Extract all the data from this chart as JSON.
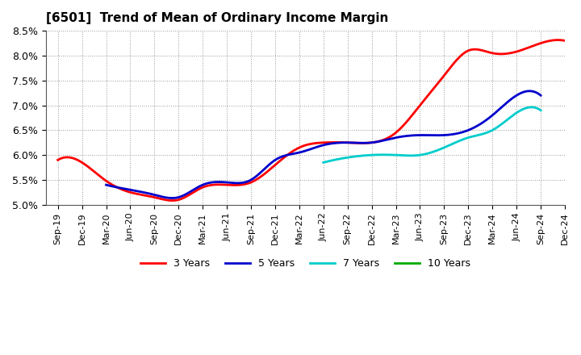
{
  "title": "[6501]  Trend of Mean of Ordinary Income Margin",
  "ylim": [
    0.05,
    0.085
  ],
  "yticks": [
    0.05,
    0.055,
    0.06,
    0.065,
    0.07,
    0.075,
    0.08,
    0.085
  ],
  "ytick_labels": [
    "5.0%",
    "5.5%",
    "6.0%",
    "6.5%",
    "7.0%",
    "7.5%",
    "8.0%",
    "8.5%"
  ],
  "x_labels": [
    "Sep-19",
    "Dec-19",
    "Mar-20",
    "Jun-20",
    "Sep-20",
    "Dec-20",
    "Mar-21",
    "Jun-21",
    "Sep-21",
    "Dec-21",
    "Mar-22",
    "Jun-22",
    "Sep-22",
    "Dec-22",
    "Mar-23",
    "Jun-23",
    "Sep-23",
    "Dec-23",
    "Mar-24",
    "Jun-24",
    "Sep-24",
    "Dec-24"
  ],
  "series": {
    "3 Years": {
      "color": "#ff0000",
      "values": [
        0.059,
        0.0585,
        0.0548,
        0.0525,
        0.0515,
        0.051,
        0.0535,
        0.054,
        0.0545,
        0.058,
        0.0615,
        0.0625,
        0.0625,
        0.0625,
        0.0645,
        0.07,
        0.076,
        0.081,
        0.0805,
        0.0808,
        0.0825,
        0.083
      ]
    },
    "5 Years": {
      "color": "#0000cc",
      "values": [
        null,
        null,
        0.054,
        0.053,
        0.052,
        0.0515,
        0.054,
        0.0545,
        0.055,
        0.059,
        0.0605,
        0.062,
        0.0625,
        0.0625,
        0.0635,
        0.064,
        0.064,
        0.065,
        0.068,
        0.072,
        0.072,
        null
      ]
    },
    "7 Years": {
      "color": "#00cccc",
      "values": [
        null,
        null,
        null,
        null,
        null,
        null,
        null,
        null,
        null,
        null,
        null,
        0.0585,
        0.0595,
        0.06,
        0.06,
        0.06,
        0.0615,
        0.0635,
        0.065,
        0.0685,
        0.069,
        null
      ]
    },
    "10 Years": {
      "color": "#00aa00",
      "values": [
        null,
        null,
        null,
        null,
        null,
        null,
        null,
        null,
        null,
        null,
        null,
        null,
        null,
        null,
        null,
        null,
        null,
        null,
        null,
        null,
        null,
        null
      ]
    }
  },
  "legend_entries": [
    "3 Years",
    "5 Years",
    "7 Years",
    "10 Years"
  ],
  "legend_colors": [
    "#ff0000",
    "#0000cc",
    "#00cccc",
    "#00aa00"
  ],
  "background_color": "#ffffff",
  "grid_color": "#999999",
  "title_fontsize": 11,
  "tick_fontsize": 8
}
